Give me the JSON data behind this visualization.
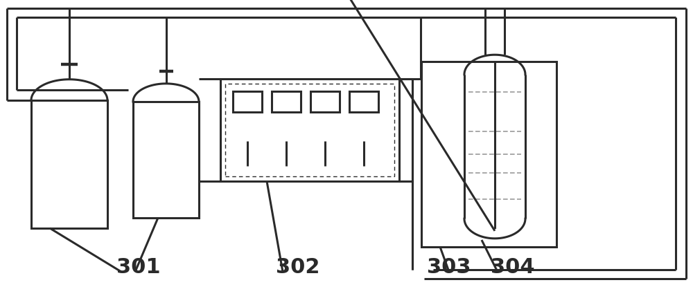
{
  "bg_color": "#ffffff",
  "line_color": "#2a2a2a",
  "lw": 2.2,
  "label_301": "301",
  "label_302": "302",
  "label_303": "303",
  "label_304": "304",
  "label_fontsize": 22,
  "label_fontweight": "bold"
}
